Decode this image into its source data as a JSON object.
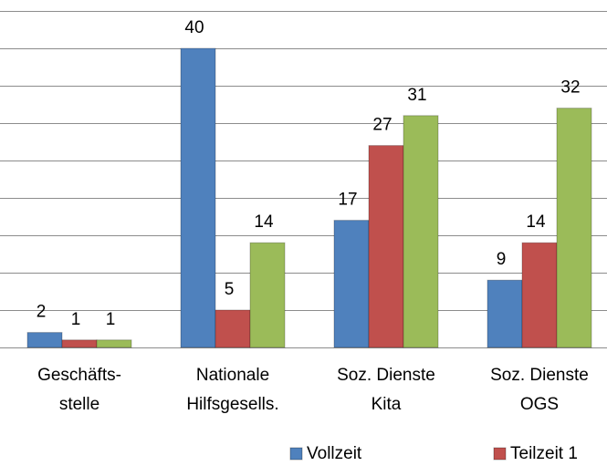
{
  "chart_data": {
    "type": "bar",
    "categories": [
      [
        "Geschäfts-",
        "stelle"
      ],
      [
        "Nationale",
        "Hilfsgesells."
      ],
      [
        "Soz. Dienste",
        "Kita"
      ],
      [
        "Soz. Dienste",
        "OGS"
      ]
    ],
    "series": [
      {
        "name": "Vollzeit",
        "color": "#4f81bd",
        "values": [
          2,
          40,
          17,
          9
        ]
      },
      {
        "name": "Teilzeit 1",
        "color": "#c0504d",
        "values": [
          1,
          5,
          27,
          14
        ]
      },
      {
        "color": "#9bbb59",
        "values": [
          1,
          14,
          31,
          32
        ]
      }
    ],
    "ylim": [
      0,
      45
    ],
    "yticks": [
      0,
      5,
      10,
      15,
      20,
      25,
      30,
      35,
      40,
      45
    ],
    "grid": true,
    "legend": "bottom"
  }
}
